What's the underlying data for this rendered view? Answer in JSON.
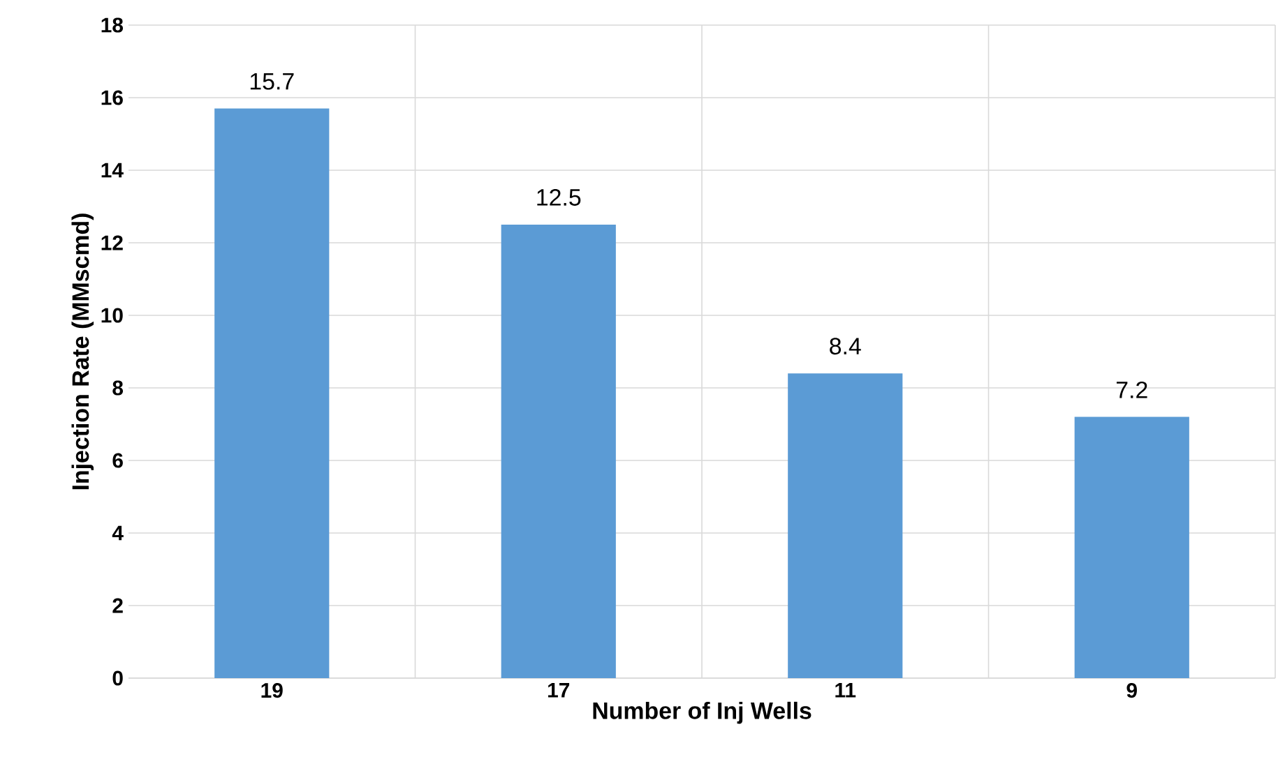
{
  "chart_data": {
    "type": "bar",
    "xlabel": "Number of Inj Wells",
    "ylabel": "Injection Rate (MMscmd)",
    "categories": [
      "19",
      "17",
      "11",
      "9"
    ],
    "values": [
      15.7,
      12.5,
      8.4,
      7.2
    ],
    "color": "#5b9bd5",
    "ylim": [
      0,
      18
    ],
    "yticks": [
      0,
      2,
      4,
      6,
      8,
      10,
      12,
      14,
      16,
      18
    ],
    "grid": true,
    "data_labels": true
  }
}
